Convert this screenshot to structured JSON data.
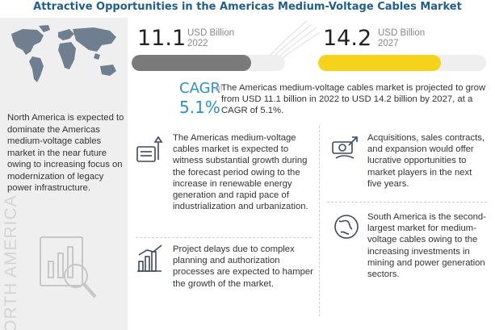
{
  "title": "Attractive Opportunities in the Americas Medium-Voltage Cables Market",
  "left_panel": {
    "text": "North America is expected to dominate the Americas medium-voltage cables market in the near future owing to increasing focus on modernization of legacy power infrastructure.",
    "vertical_label": "NORTH AMERICA",
    "map_icon": "world-map",
    "analysis_icon": "magnifier-chart-icon"
  },
  "metrics": {
    "m2022": {
      "value": "11.1",
      "unit": "USD Billion",
      "year": "2022",
      "fill_fraction": 0.78,
      "color": "#7a7a7a"
    },
    "m2027": {
      "value": "14.2",
      "unit": "USD Billion",
      "year": "2027",
      "fill_fraction": 0.73,
      "color": "#f5d31a"
    }
  },
  "cagr": {
    "label": "CAGR",
    "of": "of",
    "value": "5.1%",
    "text": "The Americas medium-voltage cables market is projected to grow from USD 11.1 billion in 2022 to USD 14.2 billion by 2027, at a CAGR of 5.1%."
  },
  "insights": [
    {
      "icon": "renewable-energy-icon",
      "text": "The Americas medium-voltage cables market is expected to witness substantial growth during the forecast period owing to the increase in renewable energy generation and rapid pace of industrialization and urbanization."
    },
    {
      "icon": "money-growth-icon",
      "text": "Acquisitions, sales contracts, and expansion would offer lucrative opportunities to market players in the next five years."
    },
    {
      "icon": "bar-chart-icon",
      "text": "Project delays due to complex planning and authorization processes are expected to hamper the growth of the market."
    },
    {
      "icon": "globe-icon",
      "text": "South America is the second-largest market for medium-voltage cables owing to the increasing investments in mining and power generation sectors."
    }
  ],
  "chart_data": {
    "type": "bar",
    "categories": [
      "2022",
      "2027"
    ],
    "values": [
      11.1,
      14.2
    ],
    "unit": "USD Billion",
    "cagr": "5.1%",
    "title": "Attractive Opportunities in the Americas Medium-Voltage Cables Market"
  },
  "colors": {
    "title": "#1f5f8b",
    "accent": "#2d8fcc",
    "bar_2022": "#7a7a7a",
    "bar_2027": "#f5d31a",
    "left_bg": "#efefef"
  }
}
